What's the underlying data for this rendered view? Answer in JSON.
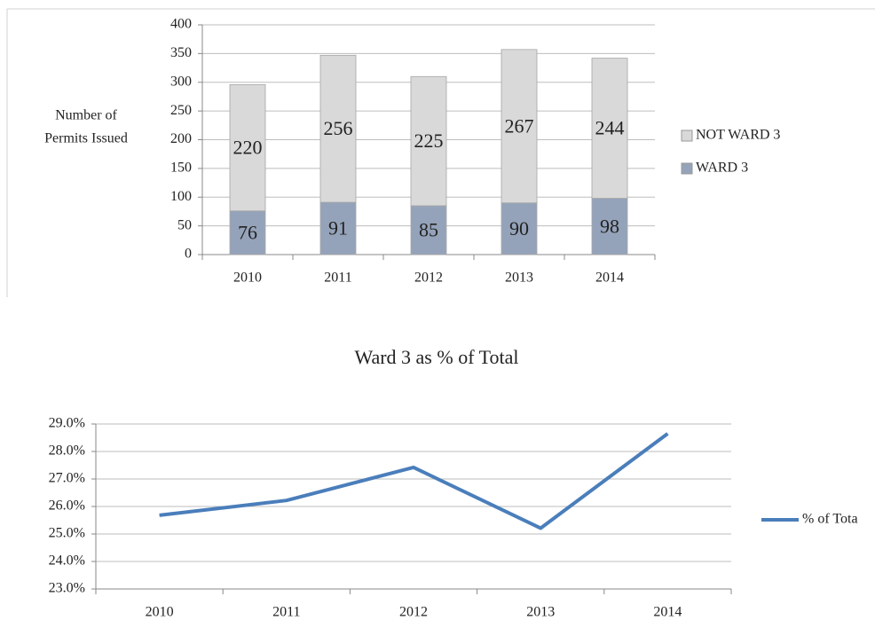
{
  "chart_data": [
    {
      "type": "stacked_bar",
      "y_label": [
        "Number of",
        "Permits Issued"
      ],
      "categories": [
        "2010",
        "2011",
        "2012",
        "2013",
        "2014"
      ],
      "series": [
        {
          "name": "WARD 3",
          "color": "#95a3ba",
          "values": [
            76,
            91,
            85,
            90,
            98
          ]
        },
        {
          "name": "NOT WARD 3",
          "color": "#d9d9d9",
          "values": [
            220,
            256,
            225,
            267,
            244
          ]
        }
      ],
      "ylim": [
        0,
        400
      ],
      "yticks": [
        0,
        50,
        100,
        150,
        200,
        250,
        300,
        350,
        400
      ],
      "grid": true,
      "legend": "right"
    },
    {
      "type": "line",
      "title": "Ward 3 as % of Total",
      "categories": [
        "2010",
        "2011",
        "2012",
        "2013",
        "2014"
      ],
      "series": [
        {
          "name": "% of Tota",
          "color": "#4a7ebb",
          "values": [
            25.68,
            26.22,
            27.42,
            25.21,
            28.65
          ]
        }
      ],
      "ylim": [
        23,
        29
      ],
      "yticks": [
        {
          "value": 23,
          "label": "23.0%"
        },
        {
          "value": 24,
          "label": "24.0%"
        },
        {
          "value": 25,
          "label": "25.0%"
        },
        {
          "value": 26,
          "label": "26.0%"
        },
        {
          "value": 27,
          "label": "27.0%"
        },
        {
          "value": 28,
          "label": "28.0%"
        },
        {
          "value": 29,
          "label": "29.0%"
        }
      ],
      "grid": true,
      "legend": "right"
    }
  ]
}
